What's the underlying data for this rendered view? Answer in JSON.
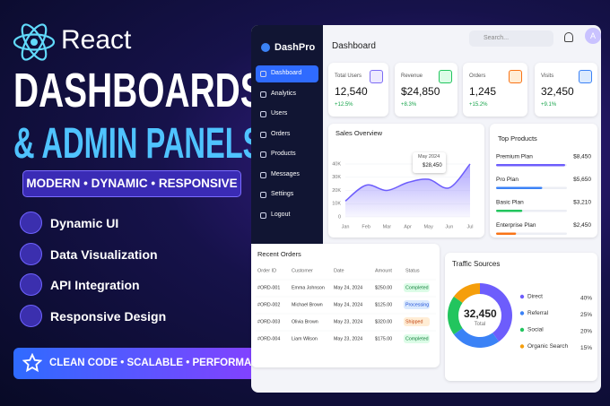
{
  "hero": {
    "brand": "React",
    "title_line1": "DASHBOARDS",
    "title_line2": "& ADMIN PANELS",
    "tagline": "MODERN • DYNAMIC • RESPONSIVE",
    "features": [
      "Dynamic UI",
      "Data Visualization",
      "API Integration",
      "Responsive Design"
    ],
    "footer": "CLEAN CODE • SCALABLE • PERFORMANCE FOCUSED"
  },
  "dashboard": {
    "brand": "DashPro",
    "menu": [
      "Dashboard",
      "Analytics",
      "Users",
      "Orders",
      "Products",
      "Messages",
      "Settings",
      "Logout"
    ],
    "page_title": "Dashboard",
    "search_placeholder": "Search...",
    "avatar": "A",
    "stats": [
      {
        "label": "Total Users",
        "value": "12,540",
        "change": "+12.5%"
      },
      {
        "label": "Revenue",
        "value": "$24,850",
        "change": "+8.3%"
      },
      {
        "label": "Orders",
        "value": "1,245",
        "change": "+15.2%"
      },
      {
        "label": "Visits",
        "value": "32,450",
        "change": "+9.1%"
      }
    ],
    "sales_overview": {
      "type": "area",
      "title": "Sales Overview",
      "categories": [
        "Jan",
        "Feb",
        "Mar",
        "Apr",
        "May",
        "Jun",
        "Jul"
      ],
      "values": [
        12000,
        24000,
        20000,
        26000,
        28450,
        22000,
        40000
      ],
      "color": "#6d5dfc",
      "ylim": [
        0,
        40000
      ],
      "yticks": [
        0,
        {
          "value": 10000,
          "label": "10K"
        },
        {
          "value": 20000,
          "label": "20K"
        },
        {
          "value": 30000,
          "label": "30K"
        },
        {
          "value": 40000,
          "label": "40K"
        }
      ],
      "tooltip": {
        "label": "May 2024",
        "value_label": "$28,450"
      }
    },
    "top_products": {
      "type": "bar",
      "title": "Top Products",
      "categories": [
        "Premium Plan",
        "Pro Plan",
        "Basic Plan",
        "Enterprise Plan"
      ],
      "values": [
        8450,
        5650,
        3210,
        2450
      ],
      "value_labels": [
        "$8,450",
        "$5,650",
        "$3,210",
        "$2,450"
      ],
      "colors": [
        "#6d5dfc",
        "#3b82f6",
        "#22c55e",
        "#f97316"
      ]
    },
    "recent_orders": {
      "title": "Recent Orders",
      "columns": [
        "Order ID",
        "Customer",
        "Date",
        "Amount",
        "Status"
      ],
      "rows": [
        [
          "#ORD-001",
          "Emma Johnson",
          "May 24, 2024",
          "$250.00",
          "Completed"
        ],
        [
          "#ORD-002",
          "Michael Brown",
          "May 24, 2024",
          "$125.00",
          "Processing"
        ],
        [
          "#ORD-003",
          "Olivia Brown",
          "May 23, 2024",
          "$320.00",
          "Shipped"
        ],
        [
          "#ORD-004",
          "Liam Wilson",
          "May 23, 2024",
          "$175.00",
          "Completed"
        ]
      ]
    },
    "traffic_sources": {
      "type": "pie",
      "title": "Traffic Sources",
      "total": "32,450",
      "total_label": "Total",
      "categories": [
        "Direct",
        "Referral",
        "Social",
        "Organic Search"
      ],
      "values": [
        40,
        25,
        20,
        15
      ],
      "value_labels": [
        "40%",
        "25%",
        "20%",
        "15%"
      ],
      "colors": [
        "#6d5dfc",
        "#3b82f6",
        "#22c55e",
        "#f59e0b"
      ]
    }
  }
}
